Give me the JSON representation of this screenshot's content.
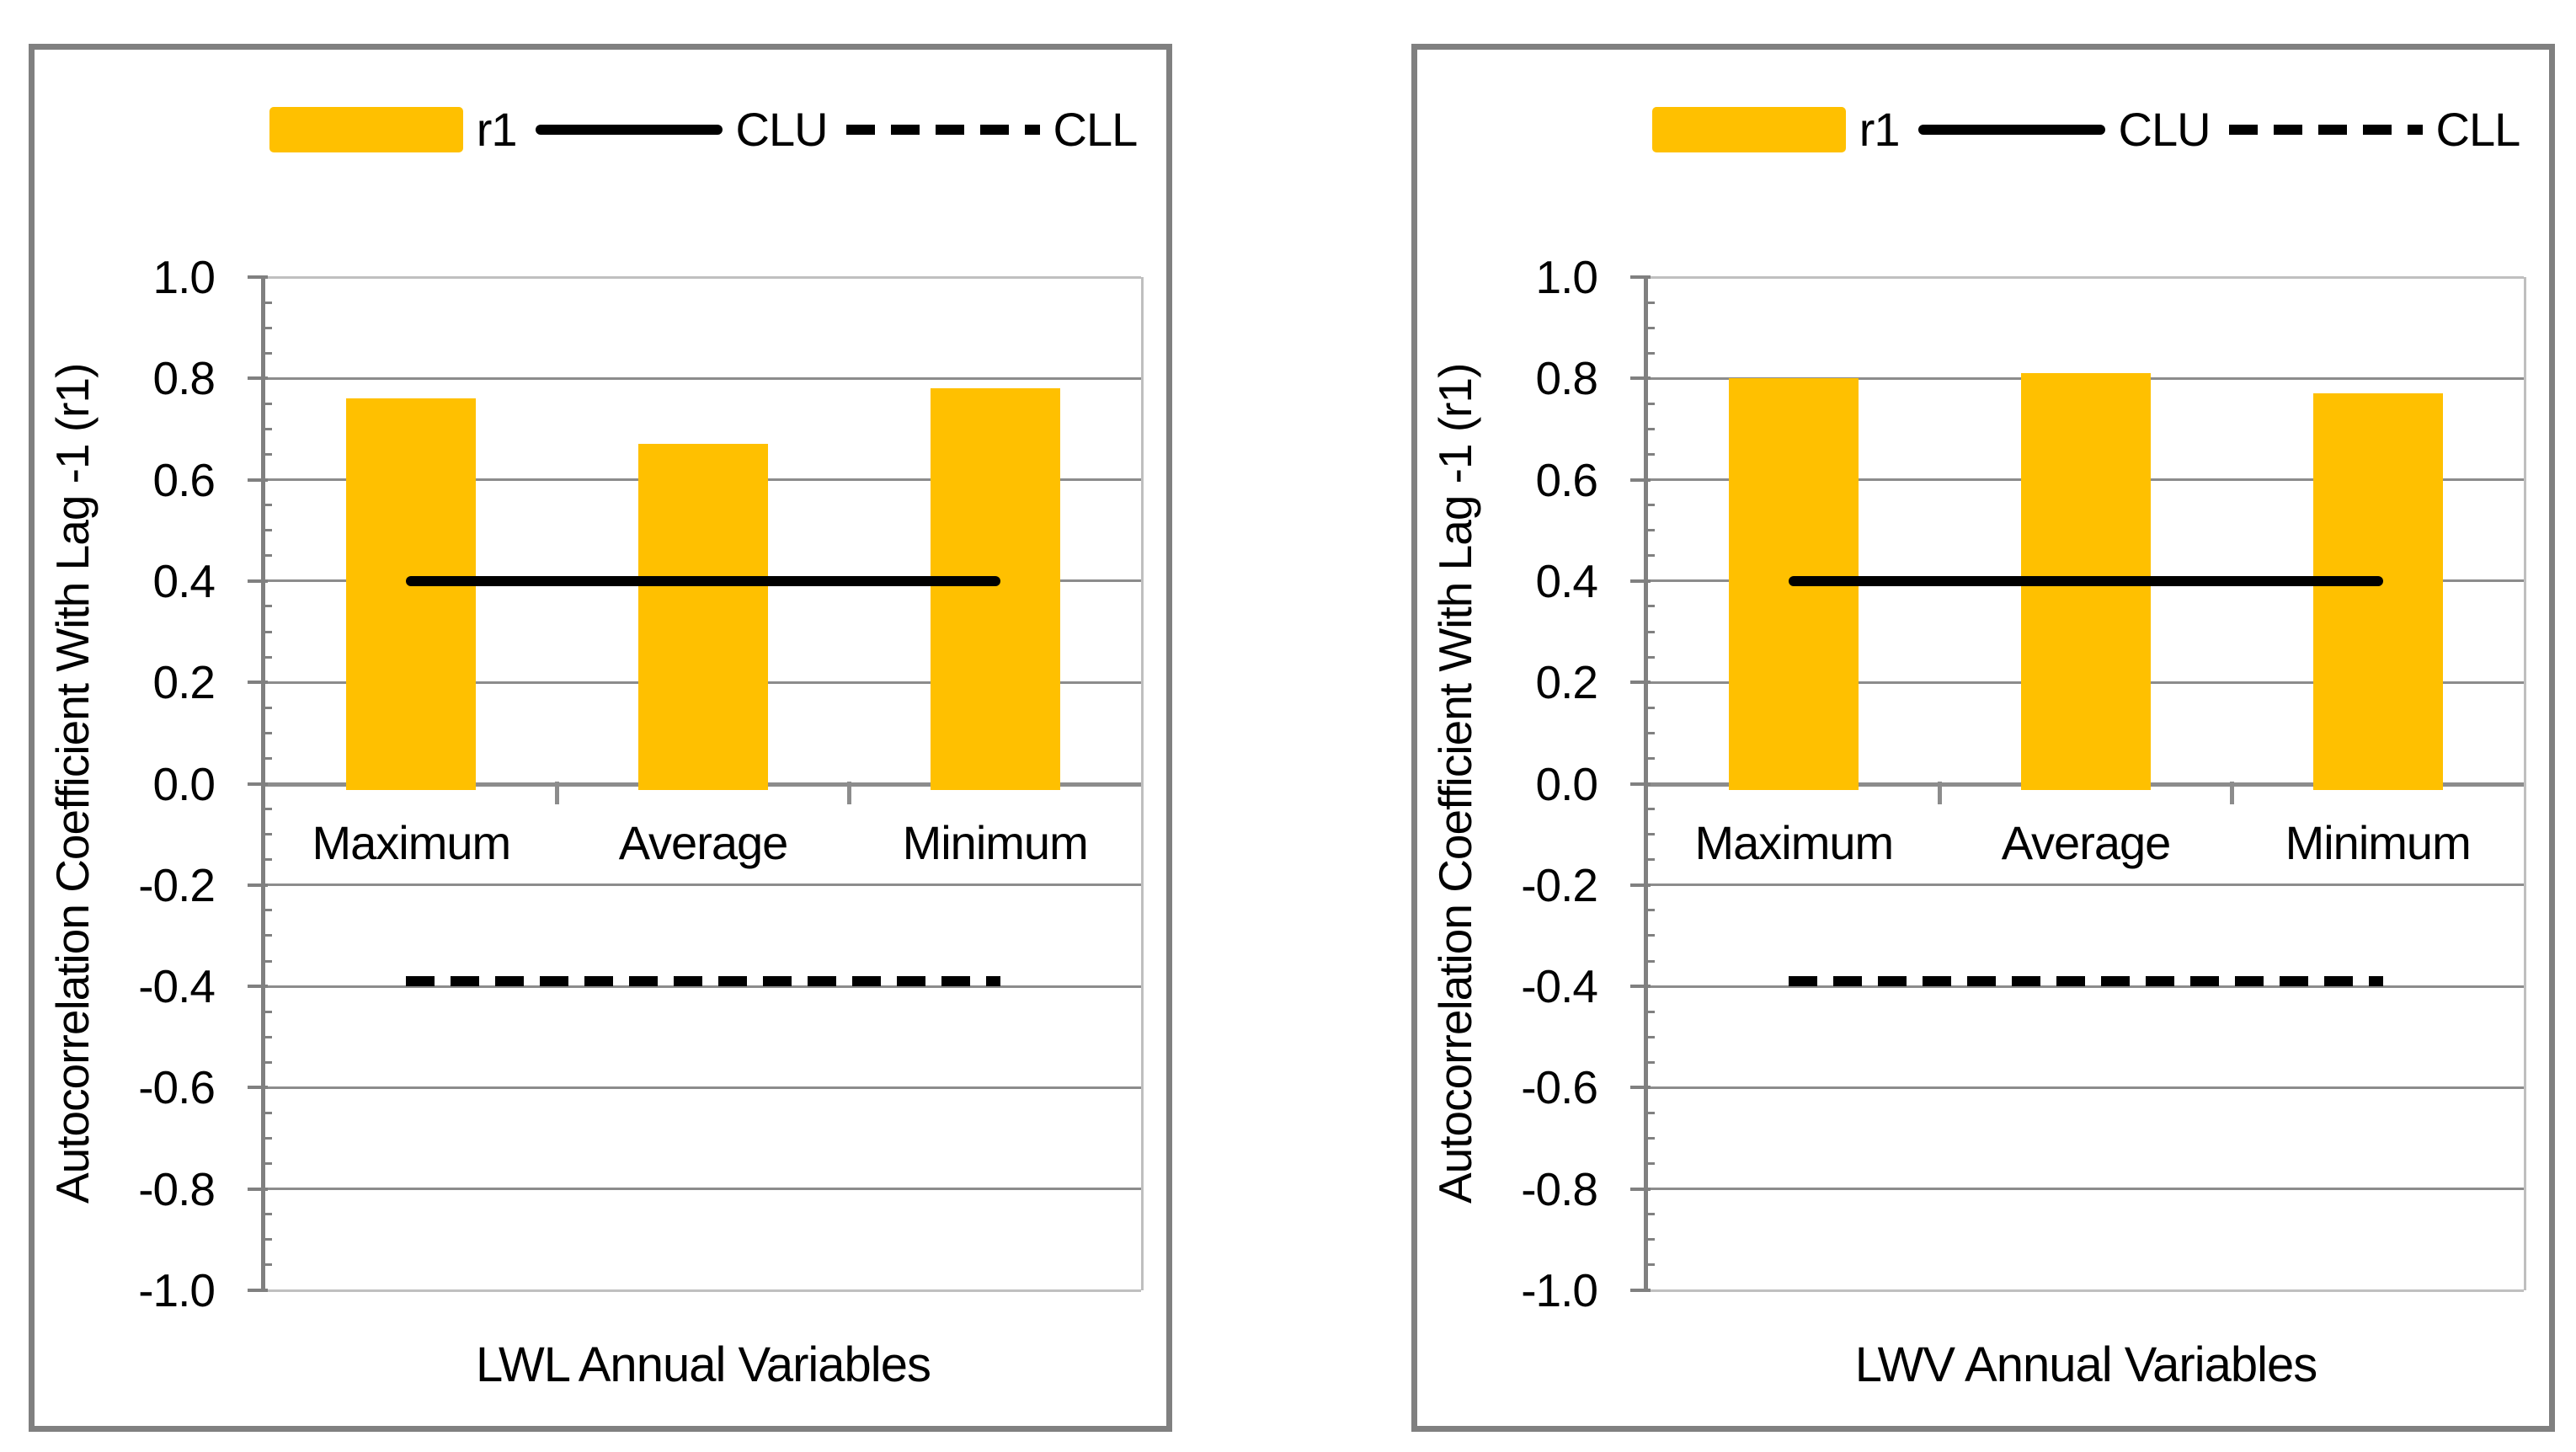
{
  "style": {
    "bar_color": "#FFC000",
    "line_color": "#000000",
    "gridline_color": "#8C8C8C",
    "plot_edge_color": "#C0C0C0",
    "axis_color": "#808080",
    "panel_border_color": "#808080",
    "text_color": "#000000",
    "background": "#FFFFFF"
  },
  "chart_data": [
    {
      "type": "bar",
      "title": "",
      "xlabel": "LWL Annual Variables",
      "ylabel": "Autocorrelation Coefficient With Lag -1 (r1)",
      "categories": [
        "Maximum",
        "Average",
        "Minimum"
      ],
      "series": [
        {
          "name": "r1",
          "kind": "bar",
          "values": [
            0.76,
            0.67,
            0.78
          ]
        },
        {
          "name": "CLU",
          "kind": "line",
          "line_style": "solid",
          "values": [
            0.4,
            0.4,
            0.4
          ]
        },
        {
          "name": "CLL",
          "kind": "line",
          "line_style": "dashed",
          "values": [
            -0.39,
            -0.39,
            -0.39
          ]
        }
      ],
      "ylim": [
        -1.0,
        1.0
      ],
      "ytick_step": 0.2,
      "ytick_labels": [
        "1.0",
        "0.8",
        "0.6",
        "0.4",
        "0.2",
        "0.0",
        "-0.2",
        "-0.4",
        "-0.6",
        "-0.8",
        "-1.0"
      ],
      "grid": true,
      "legend_position": "top"
    },
    {
      "type": "bar",
      "title": "",
      "xlabel": "LWV Annual Variables",
      "ylabel": "Autocorrelation Coefficient With Lag -1 (r1)",
      "categories": [
        "Maximum",
        "Average",
        "Minimum"
      ],
      "series": [
        {
          "name": "r1",
          "kind": "bar",
          "values": [
            0.8,
            0.81,
            0.77
          ]
        },
        {
          "name": "CLU",
          "kind": "line",
          "line_style": "solid",
          "values": [
            0.4,
            0.4,
            0.4
          ]
        },
        {
          "name": "CLL",
          "kind": "line",
          "line_style": "dashed",
          "values": [
            -0.39,
            -0.39,
            -0.39
          ]
        }
      ],
      "ylim": [
        -1.0,
        1.0
      ],
      "ytick_step": 0.2,
      "ytick_labels": [
        "1.0",
        "0.8",
        "0.6",
        "0.4",
        "0.2",
        "0.0",
        "-0.2",
        "-0.4",
        "-0.6",
        "-0.8",
        "-1.0"
      ],
      "grid": true,
      "legend_position": "top"
    }
  ]
}
